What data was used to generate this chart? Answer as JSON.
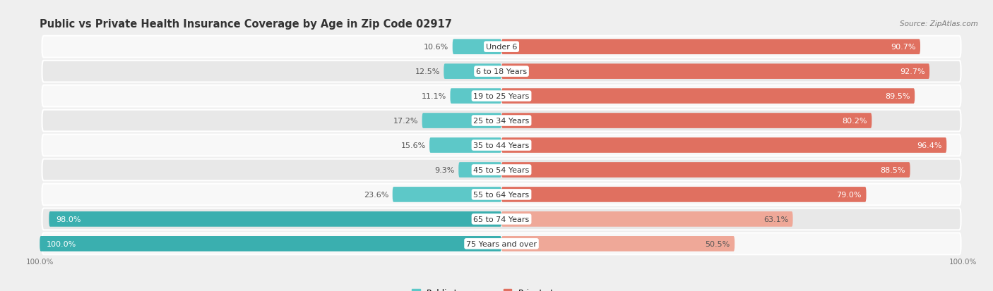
{
  "title": "Public vs Private Health Insurance Coverage by Age in Zip Code 02917",
  "source": "Source: ZipAtlas.com",
  "categories": [
    "Under 6",
    "6 to 18 Years",
    "19 to 25 Years",
    "25 to 34 Years",
    "35 to 44 Years",
    "45 to 54 Years",
    "55 to 64 Years",
    "65 to 74 Years",
    "75 Years and over"
  ],
  "public_values": [
    10.6,
    12.5,
    11.1,
    17.2,
    15.6,
    9.3,
    23.6,
    98.0,
    100.0
  ],
  "private_values": [
    90.7,
    92.7,
    89.5,
    80.2,
    96.4,
    88.5,
    79.0,
    63.1,
    50.5
  ],
  "public_color_dark": "#3AAFAF",
  "public_color_light": "#5DC8C8",
  "private_color_dark": "#E07060",
  "private_color_light": "#EFA898",
  "bg_color": "#EFEFEF",
  "row_bg_light": "#F8F8F8",
  "row_bg_dark": "#E8E8E8",
  "title_fontsize": 10.5,
  "label_fontsize": 8,
  "value_fontsize": 8,
  "legend_fontsize": 8.5,
  "axis_label_fontsize": 7.5
}
